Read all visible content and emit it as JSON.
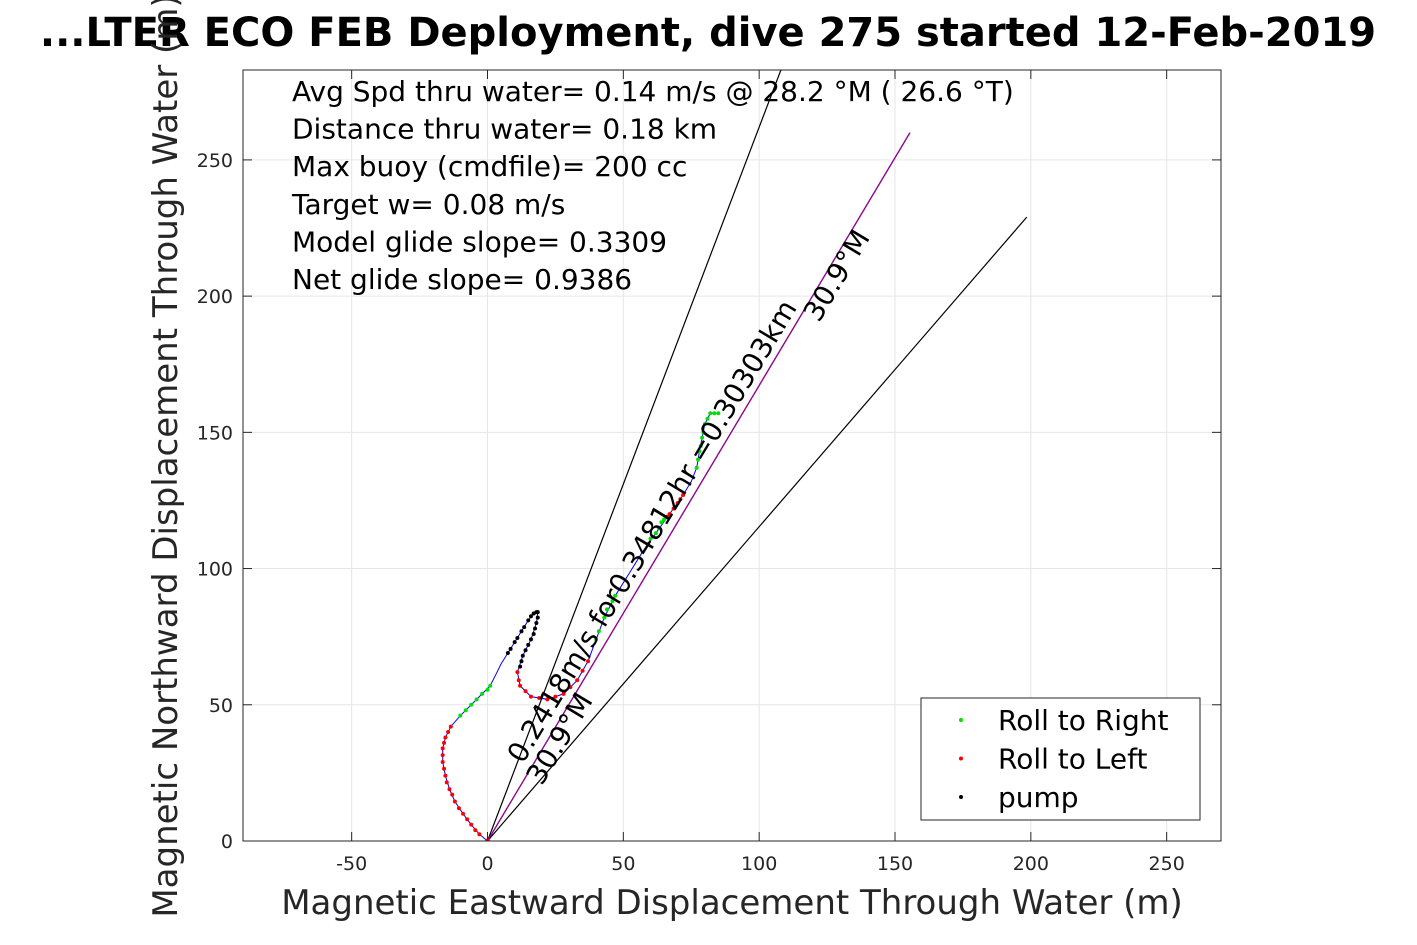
{
  "chart_data": {
    "type": "scatter",
    "title": "...LTER ECO FEB Deployment, dive 275 started 12-Feb-2019",
    "xlabel": "Magnetic Eastward Displacement Through Water (m)",
    "ylabel": "Magnetic Northward Displacement Through Water (m)",
    "xlim": [
      -90,
      270
    ],
    "ylim": [
      0,
      283
    ],
    "xticks": [
      -50,
      0,
      50,
      100,
      150,
      200,
      250
    ],
    "xtick_labels": [
      "-50",
      "0",
      "50",
      "100",
      "150",
      "200",
      "250"
    ],
    "yticks": [
      0,
      50,
      100,
      150,
      200,
      250
    ],
    "ytick_labels": [
      "0",
      "50",
      "100",
      "150",
      "200",
      "250"
    ],
    "grid": true,
    "legend_position": "bottom-right",
    "info_lines": [
      "Avg Spd thru water=  0.14 m/s @  28.2 °M ( 26.6 °T)",
      "Distance thru water=  0.18 km",
      "Max buoy (cmdfile)= 200 cc",
      "Target w= 0.08 m/s",
      "Model glide slope= 0.3309",
      "Net glide slope= 0.9386"
    ],
    "annotations": [
      {
        "text": "0.2418m/s for0.34812hr =0.30303km",
        "x": 13,
        "y": 28,
        "angle_deg": -59
      },
      {
        "text": "30.9°M",
        "x": 122,
        "y": 190,
        "angle_deg": -59
      },
      {
        "text": "30.9°M",
        "x": 20,
        "y": 20,
        "angle_deg": -59
      }
    ],
    "reference_lines": [
      {
        "name": "upper",
        "from": [
          0,
          0
        ],
        "to": [
          108,
          283
        ],
        "color": "#000000"
      },
      {
        "name": "heading",
        "from": [
          0,
          0
        ],
        "to": [
          155.5,
          260
        ],
        "color": "#000000"
      },
      {
        "name": "lower",
        "from": [
          0,
          0
        ],
        "to": [
          198.5,
          229
        ],
        "color": "#000000"
      }
    ],
    "heading_track": {
      "from": [
        0,
        0
      ],
      "to": [
        155.5,
        260
      ],
      "color": "#a000a0"
    },
    "track": {
      "color": "#0000ff",
      "points": [
        [
          0,
          0
        ],
        [
          -3,
          2.5
        ],
        [
          -6,
          6
        ],
        [
          -9,
          10
        ],
        [
          -12,
          14.5
        ],
        [
          -14,
          19
        ],
        [
          -15.5,
          24
        ],
        [
          -16.5,
          29
        ],
        [
          -16.5,
          34
        ],
        [
          -15.5,
          38
        ],
        [
          -14,
          41
        ],
        [
          -13.5,
          42
        ],
        [
          -10,
          46
        ],
        [
          -6,
          50
        ],
        [
          -2,
          54
        ],
        [
          1,
          57
        ],
        [
          3,
          61
        ],
        [
          5,
          65
        ],
        [
          7.5,
          69
        ],
        [
          10,
          73
        ],
        [
          12.5,
          77
        ],
        [
          15,
          81
        ],
        [
          17,
          83.5
        ],
        [
          18.5,
          84
        ],
        [
          18,
          80
        ],
        [
          16,
          74
        ],
        [
          13,
          68
        ],
        [
          11,
          62
        ],
        [
          12,
          57
        ],
        [
          16,
          53
        ],
        [
          22,
          52
        ],
        [
          28,
          54
        ],
        [
          33,
          59
        ],
        [
          37,
          66
        ],
        [
          40,
          74
        ],
        [
          43,
          82
        ],
        [
          47,
          90
        ],
        [
          52,
          98
        ],
        [
          57,
          106
        ],
        [
          62,
          113
        ],
        [
          67,
          120
        ],
        [
          72,
          127
        ],
        [
          75,
          132
        ],
        [
          77,
          137
        ],
        [
          78,
          143
        ],
        [
          79,
          148
        ],
        [
          80,
          153
        ],
        [
          82,
          157
        ],
        [
          85,
          157
        ]
      ]
    },
    "series": [
      {
        "name": "Roll to Right",
        "color": "#00e000",
        "points": [
          [
            -10,
            46
          ],
          [
            -8,
            48
          ],
          [
            -6,
            50
          ],
          [
            -4,
            52
          ],
          [
            -2,
            54
          ],
          [
            0,
            55.5
          ],
          [
            1,
            57
          ],
          [
            40,
            74
          ],
          [
            41,
            77
          ],
          [
            43,
            82
          ],
          [
            44,
            85
          ],
          [
            46,
            88
          ],
          [
            47,
            90
          ],
          [
            59,
            109
          ],
          [
            60,
            111
          ],
          [
            62,
            113
          ],
          [
            63,
            115
          ],
          [
            64,
            117
          ],
          [
            65,
            118
          ],
          [
            77,
            137
          ],
          [
            77.5,
            140
          ],
          [
            78,
            143
          ],
          [
            78.5,
            145
          ],
          [
            79,
            148
          ],
          [
            79.5,
            150
          ],
          [
            80,
            153
          ],
          [
            81,
            155
          ],
          [
            82,
            157
          ],
          [
            83.5,
            157
          ],
          [
            85,
            157
          ]
        ]
      },
      {
        "name": "Roll to Left",
        "color": "#ff0000",
        "points": [
          [
            -3,
            2.5
          ],
          [
            -4.5,
            4
          ],
          [
            -6,
            6
          ],
          [
            -7.5,
            8
          ],
          [
            -9,
            10
          ],
          [
            -10.5,
            12
          ],
          [
            -12,
            14.5
          ],
          [
            -13,
            17
          ],
          [
            -14,
            19
          ],
          [
            -15,
            21.5
          ],
          [
            -15.5,
            24
          ],
          [
            -16,
            26.5
          ],
          [
            -16.5,
            29
          ],
          [
            -16.5,
            31.5
          ],
          [
            -16.5,
            34
          ],
          [
            -16,
            36
          ],
          [
            -15.5,
            38
          ],
          [
            -14.5,
            40
          ],
          [
            -13.5,
            42
          ],
          [
            11,
            62
          ],
          [
            11.5,
            59
          ],
          [
            12,
            57
          ],
          [
            14,
            55
          ],
          [
            16,
            53
          ],
          [
            19,
            52.5
          ],
          [
            22,
            52
          ],
          [
            25,
            53
          ],
          [
            28,
            54
          ],
          [
            30.5,
            56.5
          ],
          [
            33,
            59
          ],
          [
            35,
            62.5
          ],
          [
            37,
            66
          ],
          [
            66,
            119
          ],
          [
            67,
            120
          ],
          [
            68.5,
            122
          ],
          [
            70,
            124
          ],
          [
            71,
            125.5
          ],
          [
            72,
            127
          ]
        ]
      },
      {
        "name": "pump",
        "color": "#000000",
        "points": [
          [
            7.5,
            69
          ],
          [
            8.5,
            70.5
          ],
          [
            10,
            73
          ],
          [
            11,
            74.5
          ],
          [
            12.5,
            77
          ],
          [
            13.5,
            78.5
          ],
          [
            15,
            81
          ],
          [
            16,
            82.5
          ],
          [
            17,
            83.5
          ],
          [
            18,
            84
          ],
          [
            18.5,
            84
          ],
          [
            18.5,
            82
          ],
          [
            18,
            80
          ],
          [
            17.5,
            78
          ],
          [
            17,
            76
          ],
          [
            16,
            74
          ],
          [
            15,
            72
          ],
          [
            14,
            70
          ],
          [
            13,
            68
          ],
          [
            12.5,
            66
          ],
          [
            12,
            64
          ]
        ]
      }
    ]
  }
}
